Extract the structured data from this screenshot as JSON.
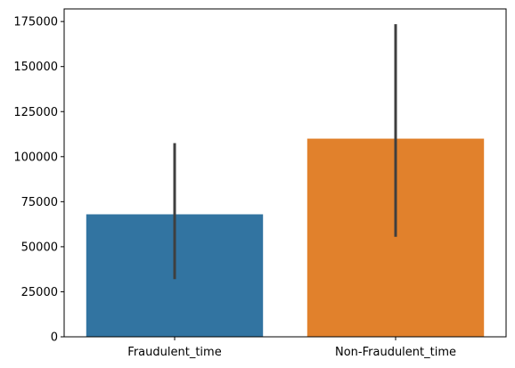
{
  "chart_data": {
    "type": "bar",
    "categories": [
      "Fraudulent_time",
      "Non-Fraudulent_time"
    ],
    "values": [
      68000,
      110000
    ],
    "error_low": [
      32000,
      55500
    ],
    "error_high": [
      107500,
      173500
    ],
    "colors": [
      "#3274a1",
      "#e1812c"
    ],
    "error_color": "#3f3f3f",
    "title": "",
    "xlabel": "",
    "ylabel": "",
    "ylim": [
      0,
      182000
    ],
    "yticks": [
      0,
      25000,
      50000,
      75000,
      100000,
      125000,
      150000,
      175000
    ],
    "grid": false,
    "legend": false
  }
}
